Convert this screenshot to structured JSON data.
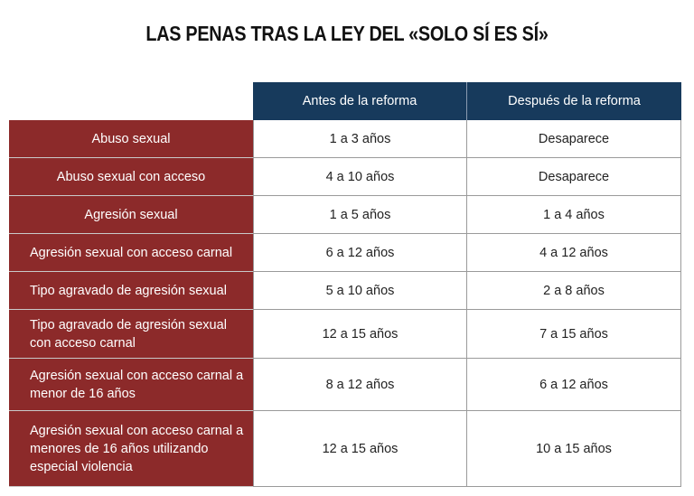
{
  "title": "LAS PENAS TRAS LA LEY DEL «SOLO SÍ ES SÍ»",
  "table": {
    "headers": [
      "Antes de la reforma",
      "Después de la reforma"
    ],
    "rows": [
      {
        "label": "Abuso sexual",
        "before": "1 a 3 años",
        "after": "Desaparece"
      },
      {
        "label": "Abuso sexual con acceso",
        "before": "4 a 10 años",
        "after": "Desaparece"
      },
      {
        "label": "Agresión sexual",
        "before": "1 a 5 años",
        "after": "1 a 4 años"
      },
      {
        "label": "Agresión sexual con acceso carnal",
        "before": "6 a 12 años",
        "after": "4 a 12 años"
      },
      {
        "label": "Tipo agravado de agresión sexual",
        "before": "5 a 10 años",
        "after": "2 a 8 años"
      },
      {
        "label": "Tipo agravado de agresión sexual con acceso carnal",
        "before": "12 a 15 años",
        "after": "7 a 15 años"
      },
      {
        "label": "Agresión sexual con acceso carnal a menor de 16 años",
        "before": "8 a 12 años",
        "after": "6 a 12 años"
      },
      {
        "label": "Agresión sexual con acceso carnal a menores de 16 años utilizando especial violencia",
        "before": "12 a 15 años",
        "after": "10 a 15 años"
      }
    ]
  },
  "colors": {
    "header_bg": "#173a5c",
    "label_bg": "#8c2a2a"
  }
}
